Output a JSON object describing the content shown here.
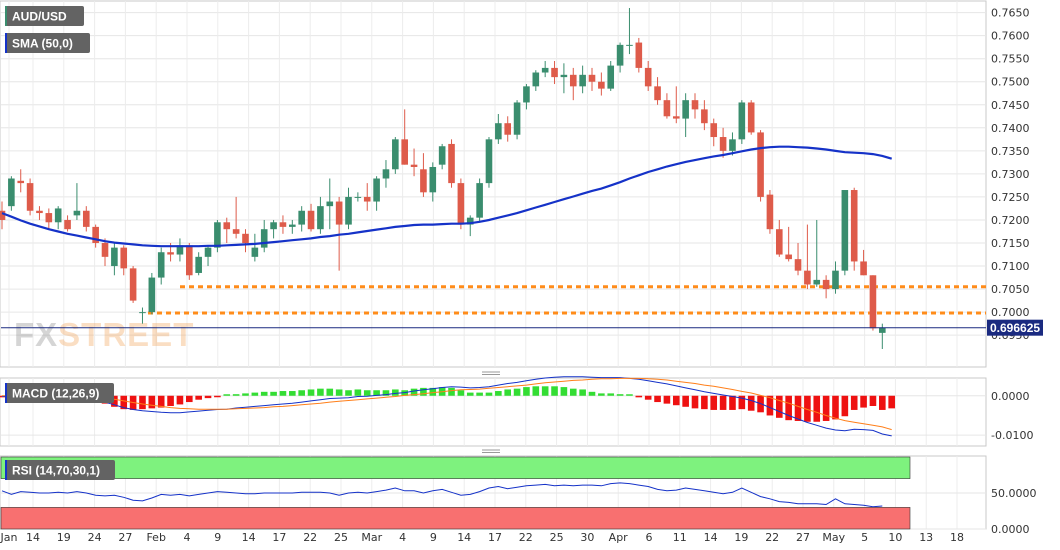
{
  "panels": {
    "price": {
      "label": "AUD/USD",
      "indicator_label": "SMA (50,0)"
    },
    "macd": {
      "label": "MACD (12,26,9)"
    },
    "rsi": {
      "label": "RSI (14,70,30,1)"
    }
  },
  "watermark": {
    "fx": "FX",
    "street": "STREET"
  },
  "current_price_label": "0.696625",
  "colors": {
    "bull": "#3a8d6e",
    "bear": "#de5b4a",
    "sma": "#1532c8",
    "support": "#ff8c1a",
    "macd_line": "#1532c8",
    "signal_line": "#ff7f1a",
    "hist_pos": "#33dd33",
    "hist_neg": "#ee1111",
    "rsi_line": "#1532c8",
    "rsi_over": "#7ef27e",
    "rsi_under": "#f87070"
  },
  "chart_data": [
    {
      "type": "candlestick",
      "y_range": [
        0.692,
        0.766
      ],
      "y_ticks": [
        "0.7650",
        "0.7600",
        "0.7550",
        "0.7500",
        "0.7450",
        "0.7400",
        "0.7350",
        "0.7300",
        "0.7250",
        "0.7200",
        "0.7150",
        "0.7100",
        "0.7050",
        "0.7000",
        "0.6950"
      ],
      "x_ticks": [
        "Jan",
        "14",
        "19",
        "24",
        "27",
        "Feb",
        "4",
        "9",
        "14",
        "17",
        "22",
        "25",
        "Mar",
        "4",
        "9",
        "14",
        "17",
        "22",
        "25",
        "30",
        "Apr",
        "6",
        "11",
        "14",
        "19",
        "22",
        "27",
        "May",
        "5",
        "10",
        "13",
        "18"
      ],
      "support_levels": [
        0.7055,
        0.6998
      ],
      "ohlc": [
        [
          0.722,
          0.724,
          0.718,
          0.72
        ],
        [
          0.723,
          0.7295,
          0.722,
          0.729
        ],
        [
          0.7285,
          0.731,
          0.726,
          0.728
        ],
        [
          0.728,
          0.729,
          0.721,
          0.722
        ],
        [
          0.722,
          0.723,
          0.72,
          0.7215
        ],
        [
          0.7215,
          0.7225,
          0.718,
          0.7195
        ],
        [
          0.7195,
          0.723,
          0.718,
          0.7225
        ],
        [
          0.72,
          0.721,
          0.7175,
          0.718
        ],
        [
          0.721,
          0.728,
          0.72,
          0.722
        ],
        [
          0.722,
          0.723,
          0.7175,
          0.7185
        ],
        [
          0.7185,
          0.719,
          0.714,
          0.715
        ],
        [
          0.715,
          0.716,
          0.71,
          0.712
        ],
        [
          0.71,
          0.715,
          0.708,
          0.714
        ],
        [
          0.714,
          0.7145,
          0.708,
          0.7095
        ],
        [
          0.7095,
          0.71,
          0.702,
          0.7025
        ],
        [
          0.7,
          0.701,
          0.6975,
          0.7
        ],
        [
          0.7,
          0.7085,
          0.6995,
          0.7075
        ],
        [
          0.7075,
          0.714,
          0.706,
          0.713
        ],
        [
          0.713,
          0.715,
          0.711,
          0.7125
        ],
        [
          0.7125,
          0.716,
          0.711,
          0.7145
        ],
        [
          0.7145,
          0.715,
          0.707,
          0.708
        ],
        [
          0.7085,
          0.713,
          0.708,
          0.712
        ],
        [
          0.712,
          0.7145,
          0.71,
          0.714
        ],
        [
          0.714,
          0.72,
          0.713,
          0.7195
        ],
        [
          0.7195,
          0.7205,
          0.715,
          0.718
        ],
        [
          0.718,
          0.725,
          0.716,
          0.717
        ],
        [
          0.717,
          0.718,
          0.713,
          0.715
        ],
        [
          0.712,
          0.717,
          0.711,
          0.714
        ],
        [
          0.714,
          0.72,
          0.713,
          0.718
        ],
        [
          0.718,
          0.72,
          0.716,
          0.7195
        ],
        [
          0.7195,
          0.721,
          0.717,
          0.7185
        ],
        [
          0.7185,
          0.72,
          0.717,
          0.719
        ],
        [
          0.719,
          0.723,
          0.7175,
          0.722
        ],
        [
          0.722,
          0.7235,
          0.7175,
          0.718
        ],
        [
          0.718,
          0.725,
          0.717,
          0.723
        ],
        [
          0.723,
          0.729,
          0.718,
          0.724
        ],
        [
          0.724,
          0.725,
          0.709,
          0.719
        ],
        [
          0.719,
          0.727,
          0.718,
          0.725
        ],
        [
          0.725,
          0.726,
          0.724,
          0.725
        ],
        [
          0.725,
          0.728,
          0.722,
          0.724
        ],
        [
          0.724,
          0.7295,
          0.722,
          0.729
        ],
        [
          0.729,
          0.733,
          0.727,
          0.731
        ],
        [
          0.731,
          0.738,
          0.73,
          0.7375
        ],
        [
          0.7375,
          0.744,
          0.732,
          0.732
        ],
        [
          0.732,
          0.7355,
          0.7295,
          0.7315
        ],
        [
          0.731,
          0.7345,
          0.725,
          0.726
        ],
        [
          0.726,
          0.7325,
          0.724,
          0.7315
        ],
        [
          0.732,
          0.7365,
          0.731,
          0.736
        ],
        [
          0.7365,
          0.7375,
          0.727,
          0.728
        ],
        [
          0.728,
          0.729,
          0.718,
          0.719
        ],
        [
          0.719,
          0.721,
          0.7165,
          0.7205
        ],
        [
          0.7205,
          0.729,
          0.7195,
          0.728
        ],
        [
          0.728,
          0.738,
          0.727,
          0.7375
        ],
        [
          0.7375,
          0.743,
          0.7365,
          0.741
        ],
        [
          0.741,
          0.7425,
          0.737,
          0.7385
        ],
        [
          0.7385,
          0.746,
          0.7375,
          0.7455
        ],
        [
          0.7455,
          0.7495,
          0.744,
          0.749
        ],
        [
          0.749,
          0.7525,
          0.748,
          0.752
        ],
        [
          0.752,
          0.7545,
          0.751,
          0.753
        ],
        [
          0.753,
          0.7545,
          0.7495,
          0.751
        ],
        [
          0.751,
          0.754,
          0.7475,
          0.7515
        ],
        [
          0.7515,
          0.753,
          0.746,
          0.749
        ],
        [
          0.749,
          0.7535,
          0.7475,
          0.7515
        ],
        [
          0.7515,
          0.753,
          0.748,
          0.75
        ],
        [
          0.75,
          0.752,
          0.747,
          0.7485
        ],
        [
          0.7485,
          0.7545,
          0.748,
          0.7535
        ],
        [
          0.7535,
          0.7585,
          0.752,
          0.758
        ],
        [
          0.758,
          0.766,
          0.756,
          0.758
        ],
        [
          0.7585,
          0.7595,
          0.752,
          0.753
        ],
        [
          0.753,
          0.7545,
          0.748,
          0.749
        ],
        [
          0.749,
          0.751,
          0.745,
          0.746
        ],
        [
          0.746,
          0.7475,
          0.742,
          0.7425
        ],
        [
          0.7425,
          0.749,
          0.741,
          0.742
        ],
        [
          0.742,
          0.7475,
          0.738,
          0.746
        ],
        [
          0.746,
          0.7475,
          0.742,
          0.744
        ],
        [
          0.744,
          0.746,
          0.7395,
          0.741
        ],
        [
          0.741,
          0.742,
          0.736,
          0.738
        ],
        [
          0.738,
          0.74,
          0.7335,
          0.735
        ],
        [
          0.735,
          0.739,
          0.734,
          0.7375
        ],
        [
          0.7375,
          0.746,
          0.7365,
          0.7455
        ],
        [
          0.7455,
          0.746,
          0.7385,
          0.739
        ],
        [
          0.739,
          0.7395,
          0.724,
          0.725
        ],
        [
          0.7255,
          0.7265,
          0.717,
          0.718
        ],
        [
          0.718,
          0.72,
          0.712,
          0.7125
        ],
        [
          0.7125,
          0.7185,
          0.711,
          0.7115
        ],
        [
          0.7115,
          0.715,
          0.708,
          0.709
        ],
        [
          0.709,
          0.719,
          0.705,
          0.706
        ],
        [
          0.706,
          0.72,
          0.7055,
          0.707
        ],
        [
          0.707,
          0.708,
          0.703,
          0.705
        ],
        [
          0.705,
          0.711,
          0.704,
          0.709
        ],
        [
          0.709,
          0.726,
          0.708,
          0.7265
        ],
        [
          0.7265,
          0.727,
          0.709,
          0.711
        ],
        [
          0.711,
          0.7135,
          0.708,
          0.708
        ],
        [
          0.708,
          0.708,
          0.696,
          0.6965
        ],
        [
          0.6955,
          0.6975,
          0.692,
          0.6966
        ]
      ],
      "sma50": [
        0.7215,
        0.7207,
        0.7199,
        0.7192,
        0.7186,
        0.718,
        0.7175,
        0.717,
        0.7166,
        0.7162,
        0.7158,
        0.7154,
        0.7151,
        0.7149,
        0.7147,
        0.7145,
        0.7144,
        0.7143,
        0.7143,
        0.7143,
        0.7143,
        0.7143,
        0.7144,
        0.7144,
        0.7145,
        0.7146,
        0.7147,
        0.7148,
        0.715,
        0.7152,
        0.7154,
        0.7156,
        0.7158,
        0.716,
        0.7163,
        0.7165,
        0.7168,
        0.717,
        0.7173,
        0.7176,
        0.7179,
        0.7182,
        0.7185,
        0.7187,
        0.7189,
        0.719,
        0.719,
        0.7191,
        0.7192,
        0.7192,
        0.7193,
        0.7196,
        0.72,
        0.7205,
        0.721,
        0.7215,
        0.7221,
        0.7227,
        0.7233,
        0.7239,
        0.7245,
        0.7251,
        0.7257,
        0.7263,
        0.7268,
        0.7275,
        0.7282,
        0.729,
        0.7297,
        0.7304,
        0.731,
        0.7316,
        0.7321,
        0.7326,
        0.733,
        0.7334,
        0.7338,
        0.7341,
        0.7345,
        0.7349,
        0.7353,
        0.7356,
        0.7358,
        0.7359,
        0.7359,
        0.7358,
        0.7357,
        0.7355,
        0.7353,
        0.735,
        0.7347,
        0.7346,
        0.7345,
        0.7343,
        0.7339,
        0.7333
      ],
      "current_price": 0.696625
    },
    {
      "type": "macd",
      "y_range": [
        -0.0125,
        0.004
      ],
      "y_ticks": [
        "0.0000",
        "-0.0100"
      ],
      "macd": [
        -0.0002,
        -0.0001,
        0.0,
        0.0,
        0.0,
        0.0,
        -0.0002,
        -0.0004,
        -0.0005,
        -0.0007,
        -0.001,
        -0.0016,
        -0.0023,
        -0.003,
        -0.0035,
        -0.0038,
        -0.004,
        -0.0042,
        -0.0043,
        -0.0043,
        -0.0041,
        -0.0039,
        -0.0037,
        -0.0035,
        -0.0034,
        -0.0031,
        -0.0029,
        -0.0027,
        -0.0025,
        -0.0023,
        -0.0021,
        -0.0019,
        -0.0016,
        -0.0013,
        -0.001,
        -0.0007,
        -0.0006,
        -0.0005,
        -0.0002,
        -0.0001,
        0.0001,
        0.0003,
        0.0006,
        0.0008,
        0.0012,
        0.0015,
        0.0018,
        0.0021,
        0.0023,
        0.0022,
        0.002,
        0.0021,
        0.0023,
        0.0027,
        0.0031,
        0.0034,
        0.0038,
        0.0042,
        0.0045,
        0.0047,
        0.0048,
        0.0048,
        0.0048,
        0.0047,
        0.0046,
        0.0046,
        0.0046,
        0.0044,
        0.0042,
        0.0038,
        0.0034,
        0.003,
        0.0025,
        0.002,
        0.0015,
        0.001,
        0.0006,
        0.0002,
        -0.0002,
        -0.0006,
        -0.0012,
        -0.002,
        -0.003,
        -0.004,
        -0.005,
        -0.0059,
        -0.0068,
        -0.0075,
        -0.0082,
        -0.0087,
        -0.0089,
        -0.0085,
        -0.0086,
        -0.0088,
        -0.0097,
        -0.0102
      ],
      "signal": [
        0.0,
        0.0,
        0.0,
        0.0,
        0.0,
        0.0,
        -0.0001,
        -0.0001,
        -0.0002,
        -0.0003,
        -0.0004,
        -0.0006,
        -0.0009,
        -0.0013,
        -0.0017,
        -0.0021,
        -0.0024,
        -0.0027,
        -0.003,
        -0.0032,
        -0.0033,
        -0.0034,
        -0.0034,
        -0.0034,
        -0.0034,
        -0.0033,
        -0.0032,
        -0.0031,
        -0.003,
        -0.0028,
        -0.0027,
        -0.0025,
        -0.0023,
        -0.0021,
        -0.0019,
        -0.0016,
        -0.0014,
        -0.0012,
        -0.001,
        -0.0008,
        -0.0006,
        -0.0004,
        -0.0002,
        0.0001,
        0.0003,
        0.0005,
        0.0008,
        0.001,
        0.0013,
        0.0015,
        0.0016,
        0.0017,
        0.0019,
        0.0021,
        0.0023,
        0.0025,
        0.0027,
        0.003,
        0.0033,
        0.0035,
        0.0037,
        0.0039,
        0.004,
        0.0042,
        0.0043,
        0.0043,
        0.0044,
        0.0044,
        0.0044,
        0.0043,
        0.0042,
        0.004,
        0.0037,
        0.0034,
        0.0031,
        0.0027,
        0.0024,
        0.002,
        0.0016,
        0.0011,
        0.0007,
        0.0001,
        -0.0005,
        -0.0012,
        -0.0019,
        -0.0027,
        -0.0035,
        -0.0042,
        -0.005,
        -0.0057,
        -0.0063,
        -0.0067,
        -0.0071,
        -0.0075,
        -0.0079,
        -0.0086
      ]
    },
    {
      "type": "rsi",
      "y_range": [
        0,
        100
      ],
      "y_ticks": [
        "50.0000",
        "0.0000"
      ],
      "levels": [
        70,
        30
      ],
      "values": [
        53,
        48,
        52,
        51,
        50,
        50,
        51,
        50,
        52,
        50,
        47,
        46,
        47,
        44,
        40,
        39,
        43,
        48,
        47,
        48,
        46,
        48,
        50,
        52,
        51,
        50,
        49,
        49,
        50,
        50,
        50,
        50,
        51,
        51,
        51,
        50,
        47,
        50,
        51,
        50,
        52,
        54,
        57,
        53,
        53,
        50,
        53,
        55,
        51,
        47,
        48,
        52,
        57,
        59,
        56,
        58,
        60,
        61,
        62,
        60,
        61,
        60,
        61,
        61,
        60,
        63,
        64,
        63,
        61,
        59,
        55,
        53,
        54,
        57,
        55,
        53,
        51,
        49,
        51,
        57,
        51,
        45,
        42,
        38,
        37,
        35,
        35,
        35,
        34,
        42,
        35,
        34,
        33,
        31,
        32
      ]
    }
  ]
}
